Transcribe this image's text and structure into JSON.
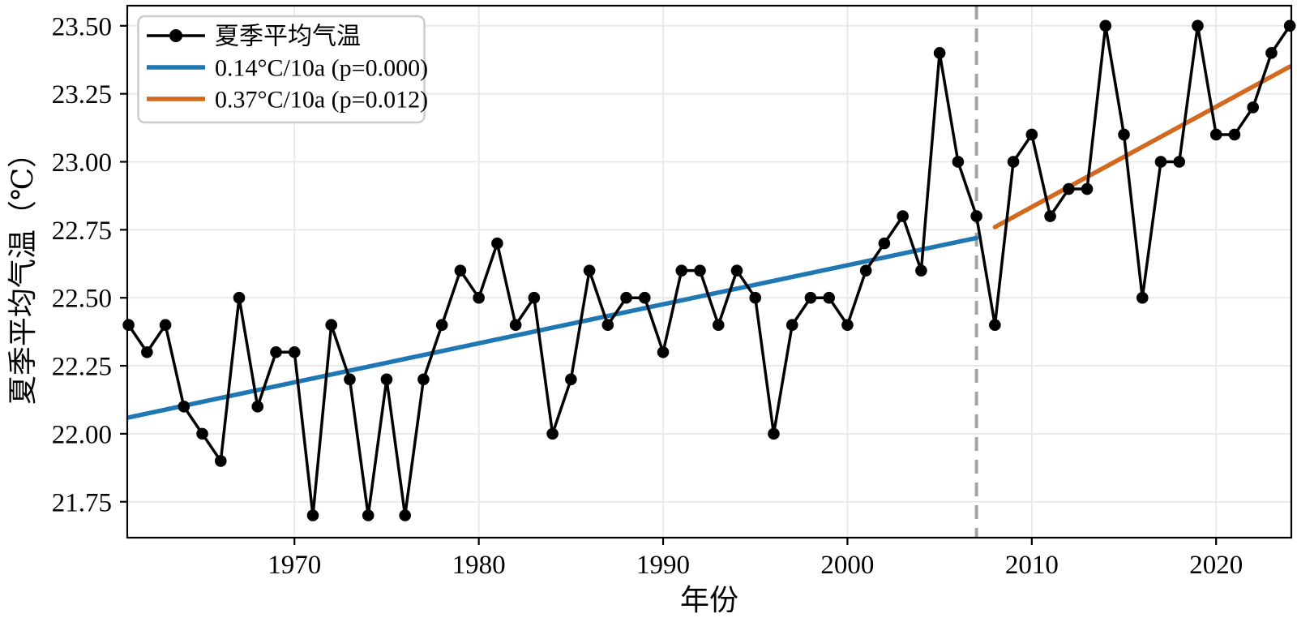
{
  "chart_data": {
    "type": "line",
    "title": "",
    "xlabel": "年份",
    "ylabel": "夏季平均气温（℃）",
    "xlim": [
      1960.93,
      2024.08
    ],
    "ylim": [
      21.618,
      23.574
    ],
    "grid": true,
    "legend_position": "upper-left",
    "xticks": {
      "values": [
        1970,
        1980,
        1990,
        2000,
        2010,
        2020
      ],
      "labels": [
        "1970",
        "1980",
        "1990",
        "2000",
        "2010",
        "2020"
      ]
    },
    "yticks": {
      "values": [
        21.75,
        22.0,
        22.25,
        22.5,
        22.75,
        23.0,
        23.25,
        23.5
      ],
      "labels": [
        "21.75",
        "22.00",
        "22.25",
        "22.50",
        "22.75",
        "23.00",
        "23.25",
        "23.50"
      ]
    },
    "series": [
      {
        "name": "夏季平均气温",
        "kind": "line-with-markers",
        "color": "#000000",
        "x": [
          1961,
          1962,
          1963,
          1964,
          1965,
          1966,
          1967,
          1968,
          1969,
          1970,
          1971,
          1972,
          1973,
          1974,
          1975,
          1976,
          1977,
          1978,
          1979,
          1980,
          1981,
          1982,
          1983,
          1984,
          1985,
          1986,
          1987,
          1988,
          1989,
          1990,
          1991,
          1992,
          1993,
          1994,
          1995,
          1996,
          1997,
          1998,
          1999,
          2000,
          2001,
          2002,
          2003,
          2004,
          2005,
          2006,
          2007,
          2008,
          2009,
          2010,
          2011,
          2012,
          2013,
          2014,
          2015,
          2016,
          2017,
          2018,
          2019,
          2020,
          2021,
          2022,
          2023,
          2024
        ],
        "values": [
          22.4,
          22.3,
          22.4,
          22.1,
          22.0,
          21.9,
          22.5,
          22.1,
          22.3,
          22.3,
          21.7,
          22.4,
          22.2,
          21.7,
          22.2,
          21.7,
          22.2,
          22.4,
          22.6,
          22.5,
          22.7,
          22.4,
          22.5,
          22.0,
          22.2,
          22.6,
          22.4,
          22.5,
          22.5,
          22.3,
          22.6,
          22.6,
          22.4,
          22.6,
          22.5,
          22.0,
          22.4,
          22.5,
          22.5,
          22.4,
          22.6,
          22.7,
          22.8,
          22.6,
          23.4,
          23.0,
          22.8,
          22.4,
          23.0,
          23.1,
          22.8,
          22.9,
          22.9,
          23.5,
          23.1,
          22.5,
          23.0,
          23.0,
          23.5,
          23.1,
          23.1,
          23.2,
          23.4,
          23.5
        ]
      },
      {
        "name": "0.14°C/10a (p=0.000)",
        "kind": "trend-line",
        "color": "#1f77b4",
        "x": [
          1961,
          2007
        ],
        "values": [
          22.06,
          22.72
        ]
      },
      {
        "name": "0.37°C/10a (p=0.012)",
        "kind": "trend-line",
        "color": "#d2691e",
        "x": [
          2008,
          2024
        ],
        "values": [
          22.76,
          23.35
        ]
      }
    ],
    "annotations": [
      {
        "type": "vline",
        "x": 2007,
        "color": "#a4a4a4",
        "style": "dashed"
      }
    ],
    "colors": {
      "grid": "#e8e8e8",
      "axis": "#000000",
      "background": "#ffffff",
      "legend_border": "#cccccc"
    }
  }
}
